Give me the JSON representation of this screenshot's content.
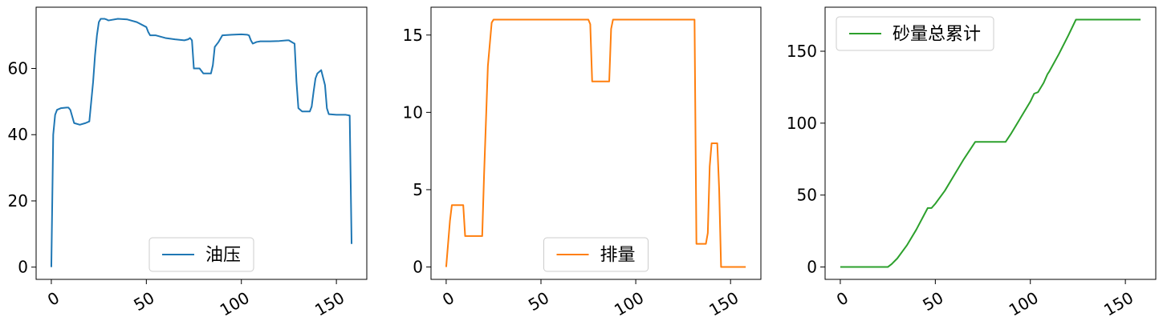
{
  "chart_data": [
    {
      "type": "line",
      "title": "",
      "xlabel": "",
      "ylabel": "",
      "xlim": [
        -8,
        166
      ],
      "ylim": [
        -3.7,
        78.5
      ],
      "xticks": [
        0,
        50,
        100,
        150
      ],
      "yticks": [
        0,
        20,
        40,
        60
      ],
      "grid": false,
      "legend": "lower center",
      "series": [
        {
          "name": "油压",
          "color": "#1f77b4",
          "x": [
            0,
            1,
            2,
            3,
            5,
            8,
            9,
            10,
            12,
            15,
            18,
            20,
            21,
            22,
            23,
            24,
            25,
            26,
            28,
            29,
            30,
            35,
            40,
            45,
            50,
            51,
            52,
            55,
            60,
            65,
            70,
            72,
            73,
            74,
            75,
            77,
            78,
            80,
            83,
            84,
            85,
            86,
            88,
            90,
            95,
            100,
            103,
            104,
            105,
            106,
            108,
            110,
            115,
            120,
            124,
            125,
            127,
            128,
            129,
            130,
            131,
            132,
            133,
            136,
            137,
            138,
            139,
            140,
            142,
            144,
            145,
            146,
            150,
            155,
            157,
            158
          ],
          "values": [
            0,
            40,
            46,
            47.5,
            48,
            48.2,
            48.2,
            47.5,
            43.5,
            43,
            43.5,
            44,
            50,
            56,
            64,
            70,
            74,
            75,
            75,
            74.8,
            74.5,
            75,
            74.8,
            74,
            72.5,
            71,
            70,
            70,
            69.2,
            68.8,
            68.5,
            68.8,
            69.2,
            68.5,
            60,
            60,
            60,
            58.5,
            58.5,
            58.5,
            61,
            66.5,
            68,
            70,
            70.2,
            70.3,
            70.2,
            70,
            68.5,
            67.5,
            68,
            68.2,
            68.2,
            68.3,
            68.5,
            68.5,
            67.8,
            67.5,
            56,
            48,
            47.5,
            47,
            47,
            47,
            48.5,
            53,
            57,
            58.5,
            59.5,
            55,
            48,
            46.2,
            46,
            46,
            45.8,
            7
          ]
        }
      ]
    },
    {
      "type": "line",
      "title": "",
      "xlabel": "",
      "ylabel": "",
      "xlim": [
        -8,
        166
      ],
      "ylim": [
        -0.8,
        16.8
      ],
      "xticks": [
        0,
        50,
        100,
        150
      ],
      "yticks": [
        0,
        5,
        10,
        15
      ],
      "grid": false,
      "legend": "lower center",
      "series": [
        {
          "name": "排量",
          "color": "#ff7f0e",
          "x": [
            0,
            2,
            3,
            9,
            10,
            19,
            20,
            22,
            24,
            25,
            40,
            60,
            75,
            76,
            77,
            86,
            87,
            88,
            100,
            131,
            132,
            137,
            138,
            139,
            140,
            143,
            144,
            145,
            158
          ],
          "values": [
            0,
            3,
            4,
            4,
            2,
            2,
            6,
            13,
            15.8,
            16,
            16,
            16,
            16,
            15.7,
            12,
            12,
            15.4,
            16,
            16,
            16,
            1.5,
            1.5,
            2.2,
            6.5,
            8,
            8,
            5,
            0,
            0
          ]
        }
      ]
    },
    {
      "type": "line",
      "title": "",
      "xlabel": "",
      "ylabel": "",
      "xlim": [
        -8,
        166
      ],
      "ylim": [
        -8.6,
        180.6
      ],
      "xticks": [
        0,
        50,
        100,
        150
      ],
      "yticks": [
        0,
        50,
        100,
        150
      ],
      "grid": false,
      "legend": "upper left",
      "series": [
        {
          "name": "砂量总累计",
          "color": "#2ca02c",
          "x": [
            0,
            10,
            20,
            25,
            27,
            30,
            35,
            40,
            46,
            48,
            50,
            55,
            60,
            65,
            71,
            75,
            80,
            87,
            90,
            95,
            100,
            102,
            104,
            107,
            109,
            110,
            115,
            120,
            124,
            130,
            140,
            150,
            158
          ],
          "values": [
            0,
            0,
            0,
            0,
            2,
            6,
            15,
            26,
            41,
            41,
            44,
            53,
            64,
            75,
            87,
            87,
            87,
            87,
            93,
            104,
            115,
            120.5,
            121.5,
            128,
            134,
            136,
            148,
            161,
            172,
            172,
            172,
            172,
            172
          ]
        }
      ]
    }
  ]
}
